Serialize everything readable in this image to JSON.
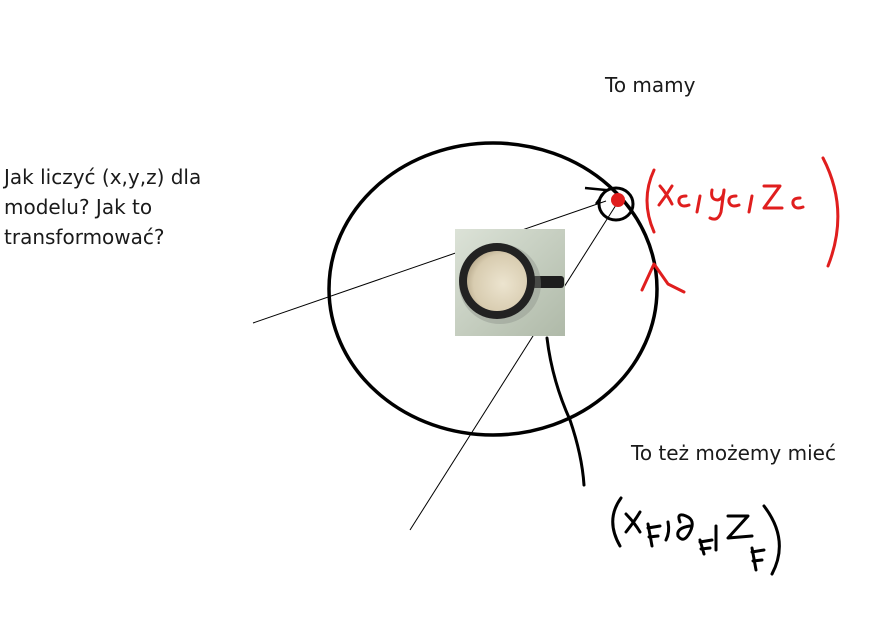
{
  "labels": {
    "question": "Jak liczyć (x,y,z) dla\nmodelu? Jak to\ntransformować?",
    "top_right": "To mamy",
    "bottom_right": "To też możemy mieć"
  },
  "handwriting": {
    "camera_coords": "(xc, yc, zc)",
    "frame_coords": "(xF, θF, zF)"
  },
  "colors": {
    "ink": "#000000",
    "marker": "#e01e1e",
    "text": "#1a1a1a",
    "photo_bg": "#c9d3c2"
  },
  "icons": {
    "model": "coffee-mug-photo"
  }
}
